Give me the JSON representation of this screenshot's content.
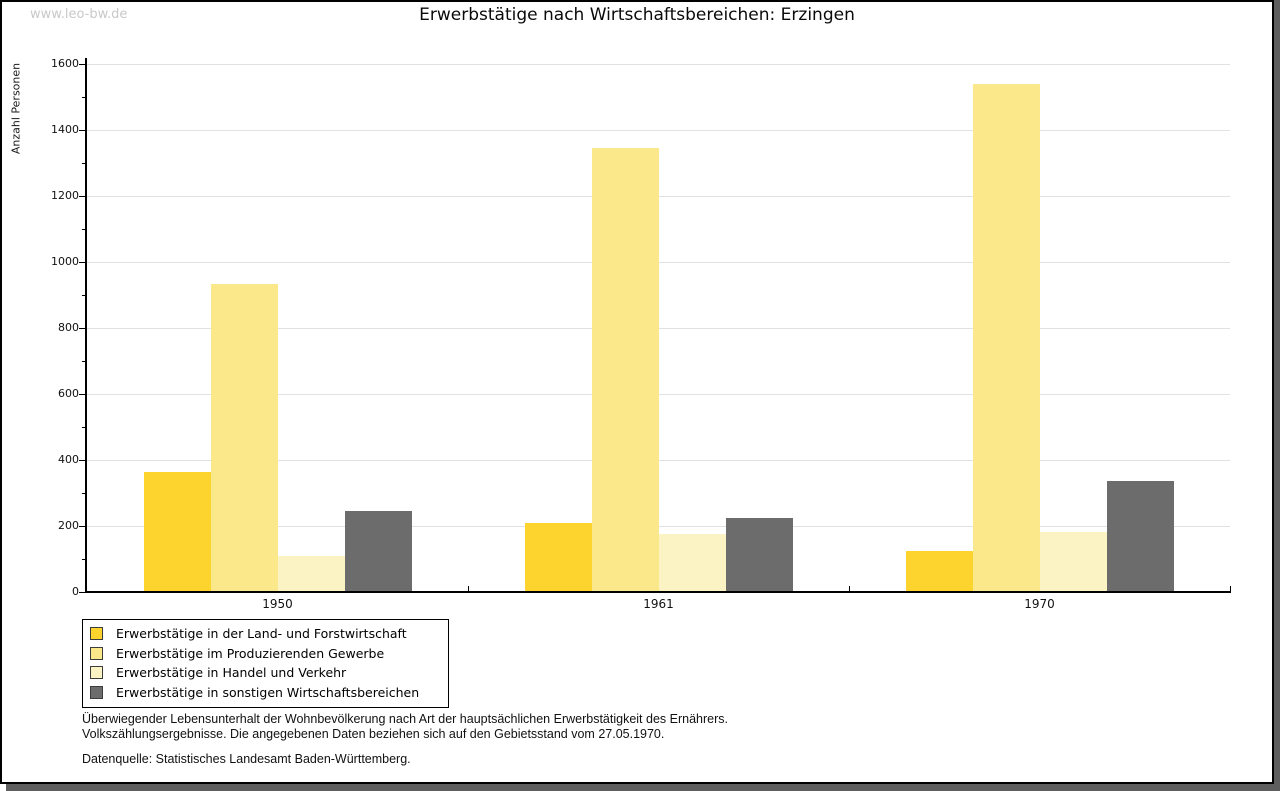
{
  "watermark": "www.leo-bw.de",
  "title": "Erwerbstätige nach Wirtschaftsbereichen: Erzingen",
  "chart_data": {
    "type": "bar",
    "title": "Erwerbstätige nach Wirtschaftsbereichen: Erzingen",
    "xlabel": "",
    "ylabel": "Anzahl Personen",
    "categories": [
      "1950",
      "1961",
      "1970"
    ],
    "series": [
      {
        "name": "Erwerbstätige in der Land- und Forstwirtschaft",
        "color": "#FCD42D",
        "values": [
          365,
          208,
          125
        ]
      },
      {
        "name": "Erwerbstätige im Produzierenden Gewerbe",
        "color": "#FBE88A",
        "values": [
          932,
          1344,
          1540
        ]
      },
      {
        "name": "Erwerbstätige in Handel und Verkehr",
        "color": "#FCF3C4",
        "values": [
          110,
          177,
          183
        ]
      },
      {
        "name": "Erwerbstätige in sonstigen Wirtschaftsbereichen",
        "color": "#6C6C6C",
        "values": [
          247,
          223,
          337
        ]
      }
    ],
    "ylim": [
      0,
      1600
    ],
    "ytick_step": 200,
    "yminor_step": 100,
    "grid": true,
    "gridcolor": "#e1e1e1",
    "legend_position": "bottom-left"
  },
  "footer": {
    "line1": "Überwiegender Lebensunterhalt der Wohnbevölkerung nach Art der hauptsächlichen Erwerbstätigkeit des Ernährers.",
    "line2": "Volkszählungsergebnisse. Die angegebenen Daten beziehen sich auf den Gebietsstand vom 27.05.1970.",
    "source": "Datenquelle: Statistisches Landesamt Baden-Württemberg."
  }
}
